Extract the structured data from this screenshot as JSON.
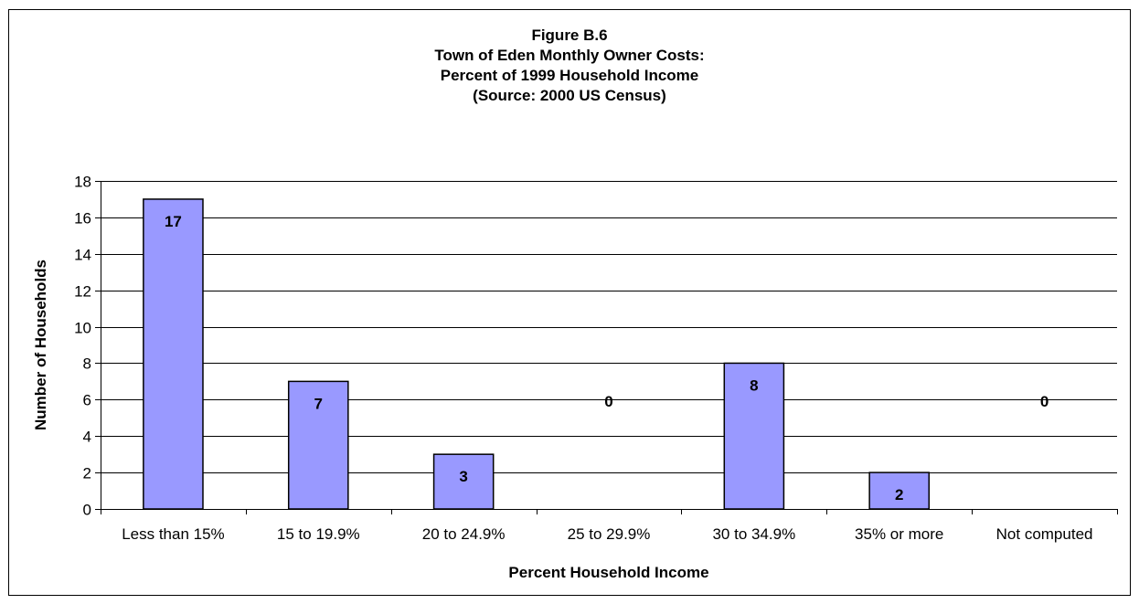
{
  "chart_data": {
    "type": "bar",
    "title_lines": [
      "Figure B.6",
      "Town of Eden Monthly Owner Costs:",
      "Percent of 1999 Household Income",
      "(Source:  2000 US Census)"
    ],
    "xlabel": "Percent Household Income",
    "ylabel": "Number of Households",
    "categories": [
      "Less than 15%",
      "15 to 19.9%",
      "20 to 24.9%",
      "25 to 29.9%",
      "30 to 34.9%",
      "35% or more",
      "Not computed"
    ],
    "values": [
      17,
      7,
      3,
      0,
      8,
      2,
      0
    ],
    "ylim": [
      0,
      18
    ],
    "yticks": [
      0,
      2,
      4,
      6,
      8,
      10,
      12,
      14,
      16,
      18
    ],
    "grid": true,
    "legend": "none",
    "colors": {
      "bar_fill": "#9999ff",
      "bar_stroke": "#000000",
      "grid": "#000000"
    }
  }
}
